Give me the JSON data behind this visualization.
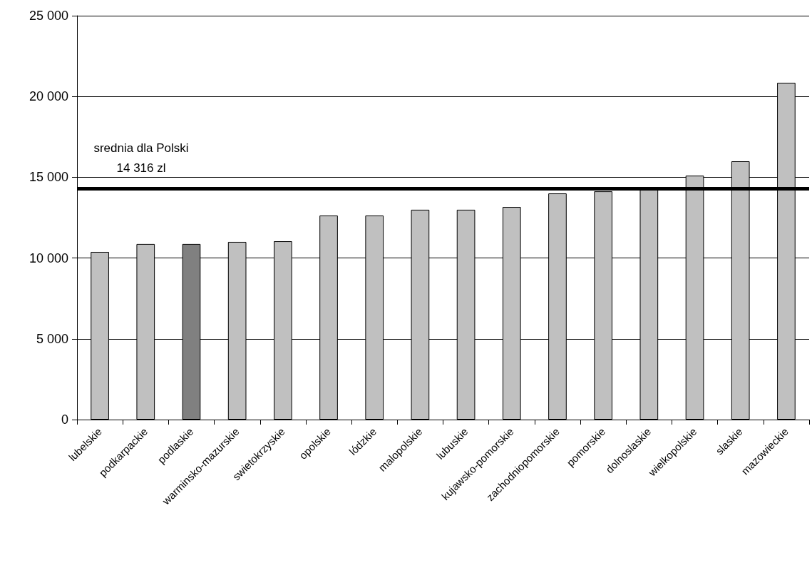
{
  "chart_data": {
    "type": "bar",
    "categories": [
      "lubelskie",
      "podkarpackie",
      "podlaskie",
      "warminsko-mazurskie",
      "swietokrzyskie",
      "opolskie",
      "lódzkie",
      "malopolskie",
      "lubuskie",
      "kujawsko-pomorskie",
      "zachodniopomorskie",
      "pomorskie",
      "dolnoslaskie",
      "wielkopolskie",
      "slaskie",
      "mazowieckie"
    ],
    "values": [
      10380,
      10870,
      10870,
      11000,
      11040,
      12630,
      12630,
      12990,
      12990,
      13160,
      14000,
      14130,
      14310,
      15100,
      15990,
      20850
    ],
    "colors": [
      "#c0c0c0",
      "#c0c0c0",
      "#808080",
      "#c0c0c0",
      "#c0c0c0",
      "#c0c0c0",
      "#c0c0c0",
      "#c0c0c0",
      "#c0c0c0",
      "#c0c0c0",
      "#c0c0c0",
      "#c0c0c0",
      "#c0c0c0",
      "#c0c0c0",
      "#c0c0c0",
      "#c0c0c0"
    ],
    "ylim": [
      0,
      25000
    ],
    "yticks": [
      {
        "value": 0,
        "label": "0"
      },
      {
        "value": 5000,
        "label": "5 000"
      },
      {
        "value": 10000,
        "label": "10 000"
      },
      {
        "value": 15000,
        "label": "15 000"
      },
      {
        "value": 20000,
        "label": "20 000"
      },
      {
        "value": 25000,
        "label": "25 000"
      }
    ],
    "grid": "y",
    "ref_lines": [
      {
        "axis": "y",
        "value": 14316,
        "label": "srednia dla Polski\n14 316 zl",
        "color": "#000000"
      }
    ]
  }
}
